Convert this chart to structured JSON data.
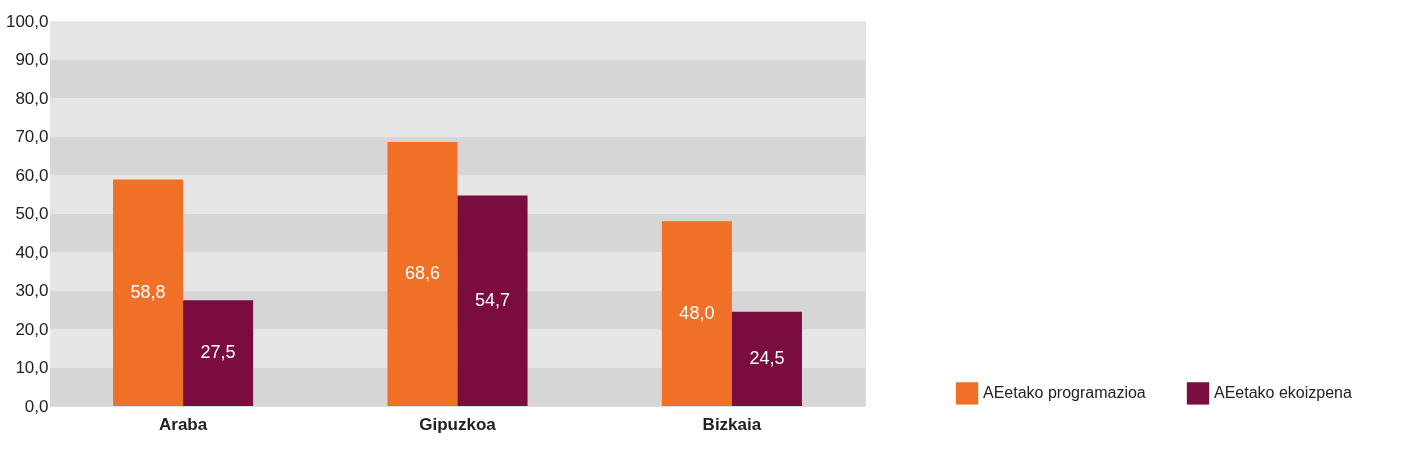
{
  "chart_data": {
    "type": "bar",
    "categories": [
      "Araba",
      "Gipuzkoa",
      "Bizkaia"
    ],
    "series": [
      {
        "name": "AEetako programazioa",
        "color": "#f07028",
        "values": [
          58.8,
          68.6,
          48.0
        ],
        "value_labels": [
          "58,8",
          "68,6",
          "48,0"
        ]
      },
      {
        "name": "AEetako ekoizpena",
        "color": "#7b0c3f",
        "values": [
          27.5,
          54.7,
          24.5
        ],
        "value_labels": [
          "27,5",
          "54,7",
          "24,5"
        ]
      }
    ],
    "ylim": [
      0,
      100
    ],
    "yticks": [
      {
        "value": 0,
        "label": "0,0"
      },
      {
        "value": 10,
        "label": "10,0"
      },
      {
        "value": 20,
        "label": "20,0"
      },
      {
        "value": 30,
        "label": "30,0"
      },
      {
        "value": 40,
        "label": "40,0"
      },
      {
        "value": 50,
        "label": "50,0"
      },
      {
        "value": 60,
        "label": "60,0"
      },
      {
        "value": 70,
        "label": "70,0"
      },
      {
        "value": 80,
        "label": "80,0"
      },
      {
        "value": 90,
        "label": "90,0"
      },
      {
        "value": 100,
        "label": "100,0"
      }
    ],
    "bands": [
      {
        "axis": "y",
        "from": 0,
        "to": 10,
        "color": "#d6d6d6"
      },
      {
        "axis": "y",
        "from": 10,
        "to": 20,
        "color": "#e6e6e6"
      },
      {
        "axis": "y",
        "from": 20,
        "to": 30,
        "color": "#d6d6d6"
      },
      {
        "axis": "y",
        "from": 30,
        "to": 40,
        "color": "#e6e6e6"
      },
      {
        "axis": "y",
        "from": 40,
        "to": 50,
        "color": "#d6d6d6"
      },
      {
        "axis": "y",
        "from": 50,
        "to": 60,
        "color": "#e6e6e6"
      },
      {
        "axis": "y",
        "from": 60,
        "to": 70,
        "color": "#d6d6d6"
      },
      {
        "axis": "y",
        "from": 70,
        "to": 80,
        "color": "#e6e6e6"
      },
      {
        "axis": "y",
        "from": 80,
        "to": 90,
        "color": "#d6d6d6"
      },
      {
        "axis": "y",
        "from": 90,
        "to": 100,
        "color": "#e6e6e6"
      }
    ],
    "legend": "bottom right",
    "data_labels": true
  }
}
